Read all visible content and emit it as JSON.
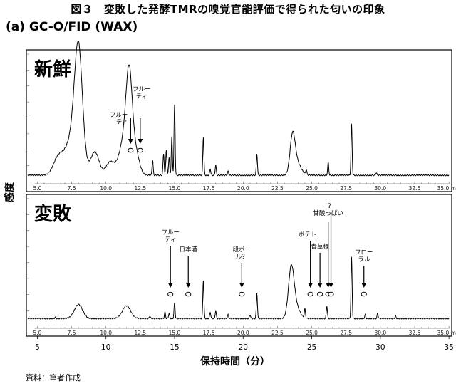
{
  "figure": {
    "title": "図３　変敗した発酵TMRの嗅覚官能評価で得られた匂いの印象",
    "subtitle": "(a) GC-O/FID (WAX)",
    "ylabel": "感度",
    "xlabel": "保持時間（分）",
    "source": "資料：筆者作成"
  },
  "chart_data": {
    "type": "line",
    "xlabel": "保持時間（分）",
    "ylabel": "感度",
    "xlim": [
      4.2,
      35.2
    ],
    "main_ticks": [
      "5",
      "10",
      "15",
      "20",
      "25",
      "30",
      "35"
    ],
    "panel_ticks": [
      "5.0",
      "7.5",
      "10.0",
      "12.5",
      "15.0",
      "17.5",
      "20.0",
      "22.5",
      "25.0",
      "27.5",
      "30.0",
      "32.5",
      "35.0 min"
    ],
    "panels": [
      {
        "label": "新鮮",
        "baseline": 0.05,
        "broad_peaks": [
          {
            "x": 6.5,
            "h": 0.12,
            "w": 0.35
          },
          {
            "x": 8.0,
            "h": 0.82,
            "w": 0.28
          },
          {
            "x": 7.6,
            "h": 0.3,
            "w": 0.55
          },
          {
            "x": 9.2,
            "h": 0.18,
            "w": 0.3
          },
          {
            "x": 10.3,
            "h": 0.1,
            "w": 0.3
          },
          {
            "x": 11.7,
            "h": 0.62,
            "w": 0.22
          },
          {
            "x": 11.4,
            "h": 0.3,
            "w": 0.4
          },
          {
            "x": 12.2,
            "h": 0.15,
            "w": 0.25
          },
          {
            "x": 23.6,
            "h": 0.28,
            "w": 0.18
          },
          {
            "x": 23.9,
            "h": 0.1,
            "w": 0.3
          }
        ],
        "sharp_peaks": [
          {
            "x": 13.4,
            "h": 0.12
          },
          {
            "x": 14.2,
            "h": 0.17
          },
          {
            "x": 14.4,
            "h": 0.2
          },
          {
            "x": 14.6,
            "h": 0.14
          },
          {
            "x": 14.8,
            "h": 0.3
          },
          {
            "x": 15.0,
            "h": 0.55
          },
          {
            "x": 17.1,
            "h": 0.3
          },
          {
            "x": 17.6,
            "h": 0.05
          },
          {
            "x": 18.0,
            "h": 0.08
          },
          {
            "x": 18.9,
            "h": 0.03
          },
          {
            "x": 21.0,
            "h": 0.17
          },
          {
            "x": 24.6,
            "h": 0.04
          },
          {
            "x": 26.2,
            "h": 0.1
          },
          {
            "x": 27.9,
            "h": 0.4
          },
          {
            "x": 29.7,
            "h": 0.02
          }
        ],
        "annotations": [
          {
            "lines": [
              "フルー",
              "ティ"
            ],
            "x": 11.8,
            "text_pos": "upper-left"
          },
          {
            "lines": [
              "フルー",
              "ティ"
            ],
            "x": 12.5,
            "text_pos": "upper-right"
          }
        ]
      },
      {
        "label": "変敗",
        "baseline": 0.06,
        "broad_peaks": [
          {
            "x": 8.0,
            "h": 0.11,
            "w": 0.3
          },
          {
            "x": 11.5,
            "h": 0.1,
            "w": 0.3
          },
          {
            "x": 23.5,
            "h": 0.36,
            "w": 0.2
          },
          {
            "x": 23.8,
            "h": 0.1,
            "w": 0.3
          }
        ],
        "sharp_peaks": [
          {
            "x": 6.3,
            "h": 0.01
          },
          {
            "x": 13.2,
            "h": 0.02
          },
          {
            "x": 14.3,
            "h": 0.05
          },
          {
            "x": 14.6,
            "h": 0.04
          },
          {
            "x": 15.0,
            "h": 0.12
          },
          {
            "x": 17.1,
            "h": 0.3
          },
          {
            "x": 17.6,
            "h": 0.05
          },
          {
            "x": 18.0,
            "h": 0.06
          },
          {
            "x": 18.9,
            "h": 0.03
          },
          {
            "x": 20.5,
            "h": 0.03
          },
          {
            "x": 21.0,
            "h": 0.2
          },
          {
            "x": 24.5,
            "h": 0.07
          },
          {
            "x": 26.1,
            "h": 0.1
          },
          {
            "x": 27.9,
            "h": 0.48
          },
          {
            "x": 28.9,
            "h": 0.03
          },
          {
            "x": 29.8,
            "h": 0.04
          },
          {
            "x": 31.1,
            "h": 0.02
          }
        ],
        "annotations": [
          {
            "lines": [
              "フルー",
              "ティ"
            ],
            "x": 14.7
          },
          {
            "lines": [
              "日本酒"
            ],
            "x": 16.0
          },
          {
            "lines": [
              "段ボー",
              "ル？"
            ],
            "x": 19.9
          },
          {
            "lines": [
              "ポテト"
            ],
            "x": 24.9
          },
          {
            "lines": [
              "青草様"
            ],
            "x": 25.6
          },
          {
            "lines": [
              "甘酸っぱい"
            ],
            "x": 26.2
          },
          {
            "lines": [
              "？"
            ],
            "x": 26.4
          },
          {
            "lines": [
              "フロー",
              "ラル"
            ],
            "x": 28.8
          }
        ]
      }
    ]
  }
}
